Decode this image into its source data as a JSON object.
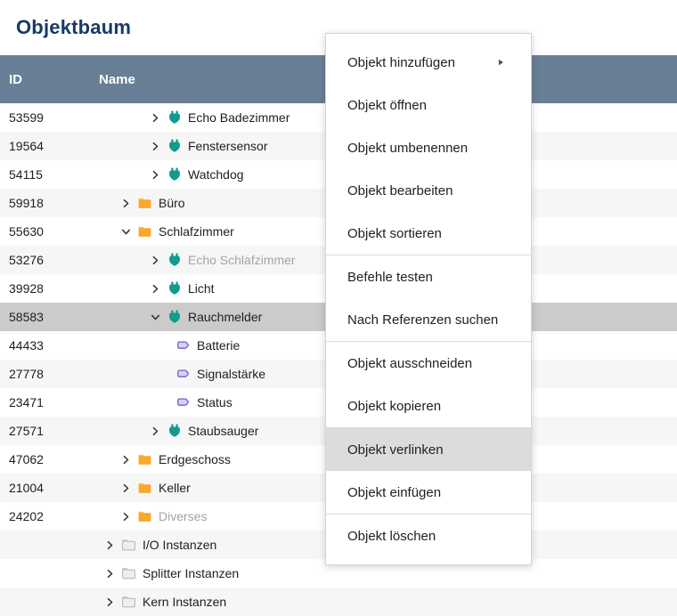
{
  "page_title": "Objektbaum",
  "table": {
    "columns": [
      "ID",
      "Name"
    ],
    "rows": [
      {
        "id": "53599",
        "name": "Echo Badezimmer",
        "icon": "instance",
        "level": 3,
        "chevron": "right",
        "hidden": false,
        "selected": false
      },
      {
        "id": "19564",
        "name": "Fenstersensor",
        "icon": "instance",
        "level": 3,
        "chevron": "right",
        "hidden": false,
        "selected": false
      },
      {
        "id": "54115",
        "name": "Watchdog",
        "icon": "instance",
        "level": 3,
        "chevron": "right",
        "hidden": false,
        "selected": false
      },
      {
        "id": "59918",
        "name": "Büro",
        "icon": "folder",
        "level": 2,
        "chevron": "right",
        "hidden": false,
        "selected": false
      },
      {
        "id": "55630",
        "name": "Schlafzimmer",
        "icon": "folder",
        "level": 2,
        "chevron": "down",
        "hidden": false,
        "selected": false
      },
      {
        "id": "53276",
        "name": "Echo Schlafzimmer",
        "icon": "instance",
        "level": 3,
        "chevron": "right",
        "hidden": true,
        "selected": false
      },
      {
        "id": "39928",
        "name": "Licht",
        "icon": "instance",
        "level": 3,
        "chevron": "right",
        "hidden": false,
        "selected": false
      },
      {
        "id": "58583",
        "name": "Rauchmelder",
        "icon": "instance",
        "level": 3,
        "chevron": "down",
        "hidden": false,
        "selected": true
      },
      {
        "id": "44433",
        "name": "Batterie",
        "icon": "variable",
        "level": 4,
        "chevron": "none",
        "hidden": false,
        "selected": false
      },
      {
        "id": "27778",
        "name": "Signalstärke",
        "icon": "variable",
        "level": 4,
        "chevron": "none",
        "hidden": false,
        "selected": false
      },
      {
        "id": "23471",
        "name": "Status",
        "icon": "variable",
        "level": 4,
        "chevron": "none",
        "hidden": false,
        "selected": false
      },
      {
        "id": "27571",
        "name": "Staubsauger",
        "icon": "instance",
        "level": 3,
        "chevron": "right",
        "hidden": false,
        "selected": false
      },
      {
        "id": "47062",
        "name": "Erdgeschoss",
        "icon": "folder",
        "level": 2,
        "chevron": "right",
        "hidden": false,
        "selected": false
      },
      {
        "id": "21004",
        "name": "Keller",
        "icon": "folder",
        "level": 2,
        "chevron": "right",
        "hidden": false,
        "selected": false
      },
      {
        "id": "24202",
        "name": "Diverses",
        "icon": "folder",
        "level": 2,
        "chevron": "right",
        "hidden": true,
        "selected": false
      },
      {
        "id": "",
        "name": "I/O Instanzen",
        "icon": "folder-gray",
        "level": 1,
        "chevron": "right",
        "hidden": false,
        "selected": false
      },
      {
        "id": "",
        "name": "Splitter Instanzen",
        "icon": "folder-gray",
        "level": 1,
        "chevron": "right",
        "hidden": false,
        "selected": false
      },
      {
        "id": "",
        "name": "Kern Instanzen",
        "icon": "folder-gray",
        "level": 1,
        "chevron": "right",
        "hidden": false,
        "selected": false
      }
    ]
  },
  "context_menu": {
    "groups": [
      {
        "items": [
          {
            "label": "Objekt hinzufügen",
            "submenu": true,
            "hover": false
          },
          {
            "label": "Objekt öffnen",
            "submenu": false,
            "hover": false
          },
          {
            "label": "Objekt umbenennen",
            "submenu": false,
            "hover": false
          },
          {
            "label": "Objekt bearbeiten",
            "submenu": false,
            "hover": false
          },
          {
            "label": "Objekt sortieren",
            "submenu": false,
            "hover": false
          }
        ]
      },
      {
        "items": [
          {
            "label": "Befehle testen",
            "submenu": false,
            "hover": false
          },
          {
            "label": "Nach Referenzen suchen",
            "submenu": false,
            "hover": false
          }
        ]
      },
      {
        "items": [
          {
            "label": "Objekt ausschneiden",
            "submenu": false,
            "hover": false
          },
          {
            "label": "Objekt kopieren",
            "submenu": false,
            "hover": false
          }
        ]
      },
      {
        "items": [
          {
            "label": "Objekt verlinken",
            "submenu": false,
            "hover": true
          },
          {
            "label": "Objekt einfügen",
            "submenu": false,
            "hover": false
          }
        ]
      },
      {
        "items": [
          {
            "label": "Objekt löschen",
            "submenu": false,
            "hover": false
          }
        ]
      }
    ]
  },
  "colors": {
    "title_text": "#173a66",
    "header_bg": "#687f95",
    "header_text": "#ffffff",
    "row_alt_bg": "#f6f6f6",
    "selected_row_bg": "#cbcbcb",
    "menu_hover_bg": "#dcdcdc",
    "hidden_text": "#a3a3a3",
    "instance_icon_teal": "#0f9b8e",
    "folder_icon_orange": "#f9a82b",
    "folder_icon_tab_orange": "#fdc157",
    "system_folder_gray": "#b9b9b9",
    "variable_icon_purple": "#6c5ed2",
    "variable_icon_fill": "#d8d0f6",
    "chevron_gray": "#333333"
  }
}
